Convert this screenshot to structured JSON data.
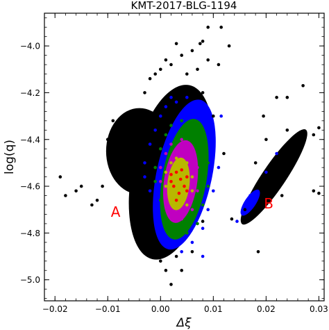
{
  "chart_data": {
    "type": "scatter",
    "title": "KMT-2017-BLG-1194",
    "xlabel": "Δξ",
    "ylabel": "log(q)",
    "xlim": [
      -0.022,
      0.031
    ],
    "ylim": [
      -5.09,
      -3.86
    ],
    "xticks": [
      -0.02,
      -0.01,
      0.0,
      0.01,
      0.02,
      0.03
    ],
    "xtick_labels": [
      "−0.02",
      "−0.01",
      "0.00",
      "0.01",
      "0.02",
      "0.03"
    ],
    "yticks": [
      -5.0,
      -4.8,
      -4.6,
      -4.4,
      -4.2,
      -4.0
    ],
    "ytick_labels": [
      "−5.0",
      "−4.8",
      "−4.6",
      "−4.4",
      "−4.2",
      "−4.0"
    ],
    "x_minor_step": 0.002,
    "y_minor_step": 0.04,
    "grid": false,
    "legend": "none",
    "colors": {
      "black": "#000000",
      "blue": "#0000ff",
      "green": "#008000",
      "magenta": "#c000c0",
      "yellow": "#b8b800",
      "red": "#ff0000"
    },
    "series": [
      {
        "color": "black",
        "points": [
          [
            -0.011,
            -4.6
          ],
          [
            -0.01,
            -4.4
          ],
          [
            -0.009,
            -4.32
          ],
          [
            -0.008,
            -4.55
          ],
          [
            -0.007,
            -4.45
          ],
          [
            -0.006,
            -4.38
          ],
          [
            -0.005,
            -4.52
          ],
          [
            -0.004,
            -4.3
          ],
          [
            -0.004,
            -4.64
          ],
          [
            -0.003,
            -4.2
          ],
          [
            -0.003,
            -4.72
          ],
          [
            -0.002,
            -4.14
          ],
          [
            -0.002,
            -4.8
          ],
          [
            -0.001,
            -4.12
          ],
          [
            -0.001,
            -4.86
          ],
          [
            0.0,
            -4.1
          ],
          [
            0.0,
            -4.92
          ],
          [
            0.001,
            -4.06
          ],
          [
            0.001,
            -4.96
          ],
          [
            0.002,
            -4.08
          ],
          [
            0.002,
            -5.02
          ],
          [
            0.003,
            -3.99
          ],
          [
            0.003,
            -4.9
          ],
          [
            0.004,
            -4.04
          ],
          [
            0.004,
            -4.96
          ],
          [
            0.005,
            -4.12
          ],
          [
            0.006,
            -4.02
          ],
          [
            0.006,
            -4.88
          ],
          [
            0.007,
            -4.1
          ],
          [
            0.008,
            -4.2
          ],
          [
            0.008,
            -4.75
          ],
          [
            0.009,
            -4.06
          ],
          [
            0.01,
            -4.3
          ],
          [
            0.011,
            -4.08
          ],
          [
            0.012,
            -4.46
          ],
          [
            0.013,
            -4.0
          ],
          [
            -0.019,
            -4.56
          ],
          [
            -0.018,
            -4.64
          ],
          [
            -0.016,
            -4.62
          ],
          [
            -0.013,
            -4.68
          ],
          [
            -0.012,
            -4.66
          ],
          [
            -0.015,
            -4.6
          ],
          [
            0.008,
            -3.98
          ],
          [
            0.009,
            -3.92
          ],
          [
            0.0115,
            -3.92
          ],
          [
            0.0075,
            -3.99
          ],
          [
            0.0195,
            -4.3
          ],
          [
            0.022,
            -4.22
          ],
          [
            0.024,
            -4.22
          ],
          [
            0.027,
            -4.17
          ],
          [
            0.026,
            -4.47
          ],
          [
            0.029,
            -4.38
          ],
          [
            0.03,
            -4.35
          ],
          [
            0.03,
            -4.63
          ],
          [
            0.029,
            -4.62
          ],
          [
            0.0185,
            -4.88
          ],
          [
            0.018,
            -4.5
          ],
          [
            0.021,
            -4.58
          ],
          [
            0.023,
            -4.64
          ],
          [
            0.016,
            -4.7
          ],
          [
            0.0135,
            -4.74
          ],
          [
            0.02,
            -4.4
          ],
          [
            0.022,
            -4.5
          ],
          [
            0.024,
            -4.36
          ]
        ]
      },
      {
        "color": "blue",
        "points": [
          [
            -0.003,
            -4.5
          ],
          [
            -0.002,
            -4.42
          ],
          [
            -0.001,
            -4.36
          ],
          [
            0.0,
            -4.3
          ],
          [
            0.001,
            -4.26
          ],
          [
            0.002,
            -4.22
          ],
          [
            0.003,
            -4.24
          ],
          [
            0.005,
            -4.22
          ],
          [
            0.007,
            -4.28
          ],
          [
            0.009,
            -4.36
          ],
          [
            0.01,
            -4.44
          ],
          [
            0.011,
            -4.52
          ],
          [
            0.01,
            -4.62
          ],
          [
            0.009,
            -4.7
          ],
          [
            0.008,
            -4.78
          ],
          [
            0.006,
            -4.84
          ],
          [
            0.004,
            -4.88
          ],
          [
            0.002,
            -4.84
          ],
          [
            0.0,
            -4.78
          ],
          [
            -0.001,
            -4.7
          ],
          [
            -0.002,
            -4.62
          ],
          [
            -0.003,
            -4.56
          ],
          [
            0.0115,
            -4.3
          ],
          [
            0.008,
            -4.9
          ],
          [
            0.0145,
            -4.75
          ],
          [
            0.017,
            -4.64
          ],
          [
            0.02,
            -4.54
          ],
          [
            0.022,
            -4.46
          ]
        ]
      },
      {
        "color": "green",
        "points": [
          [
            -0.001,
            -4.52
          ],
          [
            0.0,
            -4.44
          ],
          [
            0.001,
            -4.38
          ],
          [
            0.002,
            -4.34
          ],
          [
            0.004,
            -4.32
          ],
          [
            0.006,
            -4.36
          ],
          [
            0.008,
            -4.42
          ],
          [
            0.009,
            -4.5
          ],
          [
            0.009,
            -4.6
          ],
          [
            0.008,
            -4.68
          ],
          [
            0.007,
            -4.76
          ],
          [
            0.005,
            -4.8
          ],
          [
            0.003,
            -4.8
          ],
          [
            0.001,
            -4.74
          ],
          [
            0.0,
            -4.66
          ],
          [
            -0.001,
            -4.58
          ]
        ]
      },
      {
        "color": "magenta",
        "points": [
          [
            0.0,
            -4.52
          ],
          [
            0.001,
            -4.46
          ],
          [
            0.002,
            -4.42
          ],
          [
            0.004,
            -4.4
          ],
          [
            0.006,
            -4.44
          ],
          [
            0.007,
            -4.52
          ],
          [
            0.007,
            -4.62
          ],
          [
            0.006,
            -4.7
          ],
          [
            0.004,
            -4.74
          ],
          [
            0.002,
            -4.7
          ],
          [
            0.001,
            -4.64
          ],
          [
            0.0,
            -4.58
          ]
        ]
      },
      {
        "color": "yellow",
        "points": [
          [
            0.001,
            -4.54
          ],
          [
            0.002,
            -4.5
          ],
          [
            0.003,
            -4.48
          ],
          [
            0.005,
            -4.5
          ],
          [
            0.006,
            -4.56
          ],
          [
            0.006,
            -4.62
          ],
          [
            0.005,
            -4.68
          ],
          [
            0.003,
            -4.68
          ],
          [
            0.002,
            -4.64
          ],
          [
            0.001,
            -4.6
          ]
        ]
      },
      {
        "color": "red",
        "points": [
          [
            0.002,
            -4.55
          ],
          [
            0.003,
            -4.54
          ],
          [
            0.004,
            -4.53
          ],
          [
            0.005,
            -4.56
          ],
          [
            0.0045,
            -4.6
          ],
          [
            0.0035,
            -4.63
          ],
          [
            0.0025,
            -4.6
          ],
          [
            0.002,
            -4.58
          ],
          [
            0.0038,
            -4.57
          ],
          [
            0.003,
            -4.66
          ],
          [
            0.005,
            -4.62
          ]
        ]
      }
    ],
    "annotations": [
      {
        "text": "A",
        "x": -0.0085,
        "y": -4.73
      },
      {
        "text": "B",
        "x": 0.0205,
        "y": -4.695
      }
    ]
  }
}
